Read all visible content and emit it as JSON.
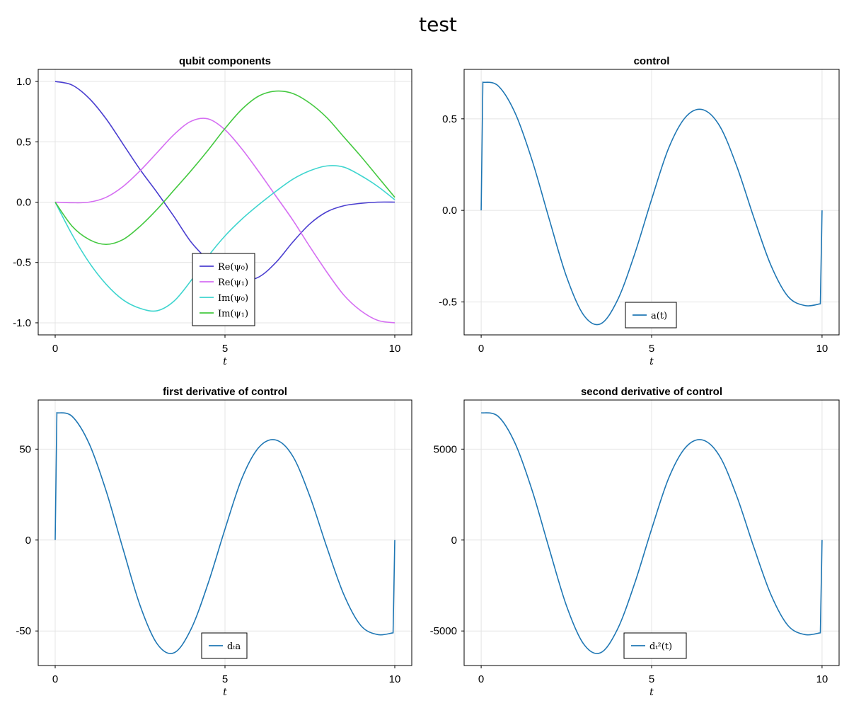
{
  "figure": {
    "title": "test"
  },
  "chart_data": [
    {
      "id": "qubit",
      "type": "line",
      "title": "qubit components",
      "xlabel": "t",
      "ylabel": "",
      "xlim": [
        -0.5,
        10.5
      ],
      "ylim": [
        -1.1,
        1.1
      ],
      "xticks": [
        0,
        5,
        10
      ],
      "xtick_labels": [
        "0",
        "5",
        "10"
      ],
      "yticks": [
        1.0,
        0.5,
        0.0,
        -0.5,
        -1.0
      ],
      "ytick_labels": [
        "1.0",
        "0.5",
        "0.0",
        "-0.5",
        "-1.0"
      ],
      "grid": true,
      "legend_position": "bottom-center",
      "x": [
        0,
        0.5,
        1,
        1.5,
        2,
        2.5,
        3,
        3.5,
        4,
        4.5,
        5,
        5.5,
        6,
        6.5,
        7,
        7.5,
        8,
        8.5,
        9,
        9.5,
        10
      ],
      "series": [
        {
          "name": "Re(ψ₀)",
          "color": "#4b3fd0",
          "values": [
            1.0,
            0.97,
            0.86,
            0.69,
            0.48,
            0.27,
            0.08,
            -0.12,
            -0.33,
            -0.48,
            -0.6,
            -0.65,
            -0.62,
            -0.5,
            -0.33,
            -0.18,
            -0.08,
            -0.03,
            -0.01,
            0.0,
            0.0
          ]
        },
        {
          "name": "Re(ψ₁)",
          "color": "#d56ef2",
          "values": [
            0.0,
            -0.005,
            0.0,
            0.04,
            0.13,
            0.26,
            0.41,
            0.56,
            0.67,
            0.69,
            0.6,
            0.44,
            0.25,
            0.05,
            -0.15,
            -0.37,
            -0.58,
            -0.77,
            -0.9,
            -0.98,
            -1.0
          ]
        },
        {
          "name": "Im(ψ₀)",
          "color": "#3fd5cf",
          "values": [
            0.0,
            -0.27,
            -0.5,
            -0.68,
            -0.81,
            -0.88,
            -0.9,
            -0.82,
            -0.65,
            -0.45,
            -0.28,
            -0.14,
            -0.02,
            0.09,
            0.19,
            0.26,
            0.3,
            0.29,
            0.22,
            0.13,
            0.02
          ]
        },
        {
          "name": "Im(ψ₁)",
          "color": "#45c941",
          "values": [
            0.0,
            -0.2,
            -0.31,
            -0.35,
            -0.31,
            -0.2,
            -0.06,
            0.1,
            0.26,
            0.43,
            0.61,
            0.77,
            0.88,
            0.92,
            0.9,
            0.82,
            0.7,
            0.54,
            0.38,
            0.21,
            0.04
          ]
        }
      ]
    },
    {
      "id": "control",
      "type": "line",
      "title": "control",
      "xlabel": "t",
      "ylabel": "",
      "xlim": [
        -0.5,
        10.5
      ],
      "ylim": [
        -0.68,
        0.77
      ],
      "xticks": [
        0,
        5,
        10
      ],
      "xtick_labels": [
        "0",
        "5",
        "10"
      ],
      "yticks": [
        0.5,
        0.0,
        -0.5
      ],
      "ytick_labels": [
        "0.5",
        "0.0",
        "-0.5"
      ],
      "grid": true,
      "legend_position": "bottom-center",
      "x": [
        0,
        0.05,
        0.5,
        1,
        1.5,
        2,
        2.5,
        3,
        3.5,
        4,
        4.5,
        5,
        5.5,
        6,
        6.5,
        7,
        7.5,
        8,
        8.5,
        9,
        9.5,
        9.95,
        10
      ],
      "series": [
        {
          "name": "a(t)",
          "color": "#1f77b4",
          "values": [
            0.0,
            0.7,
            0.68,
            0.53,
            0.27,
            -0.05,
            -0.36,
            -0.57,
            -0.62,
            -0.49,
            -0.24,
            0.06,
            0.34,
            0.51,
            0.55,
            0.46,
            0.24,
            -0.04,
            -0.3,
            -0.47,
            -0.52,
            -0.51,
            0.0
          ]
        }
      ]
    },
    {
      "id": "d1",
      "type": "line",
      "title": "first derivative of control",
      "xlabel": "t",
      "ylabel": "",
      "xlim": [
        -0.5,
        10.5
      ],
      "ylim": [
        -69,
        77
      ],
      "xticks": [
        0,
        5,
        10
      ],
      "xtick_labels": [
        "0",
        "5",
        "10"
      ],
      "yticks": [
        50,
        0,
        -50
      ],
      "ytick_labels": [
        "50",
        "0",
        "-50"
      ],
      "grid": true,
      "legend_position": "bottom-center",
      "x": [
        0,
        0.05,
        0.5,
        1,
        1.5,
        2,
        2.5,
        3,
        3.5,
        4,
        4.5,
        5,
        5.5,
        6,
        6.5,
        7,
        7.5,
        8,
        8.5,
        9,
        9.5,
        9.95,
        10
      ],
      "series": [
        {
          "name": "dₜa",
          "color": "#1f77b4",
          "values": [
            0.0,
            70,
            68,
            53,
            27,
            -5,
            -36,
            -57,
            -62,
            -49,
            -24,
            6,
            34,
            51,
            55,
            46,
            24,
            -4,
            -30,
            -47,
            -52,
            -51,
            0
          ]
        }
      ]
    },
    {
      "id": "d2",
      "type": "line",
      "title": "second derivative of control",
      "xlabel": "t",
      "ylabel": "",
      "xlim": [
        -0.5,
        10.5
      ],
      "ylim": [
        -6900,
        7700
      ],
      "xticks": [
        0,
        5,
        10
      ],
      "xtick_labels": [
        "0",
        "5",
        "10"
      ],
      "yticks": [
        5000,
        0,
        -5000
      ],
      "ytick_labels": [
        "5000",
        "0",
        "-5000"
      ],
      "grid": true,
      "legend_position": "bottom-center",
      "x": [
        0,
        0.5,
        1,
        1.5,
        2,
        2.5,
        3,
        3.5,
        4,
        4.5,
        5,
        5.5,
        6,
        6.5,
        7,
        7.5,
        8,
        8.5,
        9,
        9.5,
        9.95,
        10
      ],
      "series": [
        {
          "name": "dₜ²(t)",
          "color": "#1f77b4",
          "values": [
            7000,
            6800,
            5300,
            2700,
            -500,
            -3600,
            -5700,
            -6200,
            -4900,
            -2400,
            600,
            3400,
            5100,
            5500,
            4600,
            2400,
            -400,
            -3000,
            -4700,
            -5200,
            -5100,
            0
          ]
        }
      ]
    }
  ]
}
